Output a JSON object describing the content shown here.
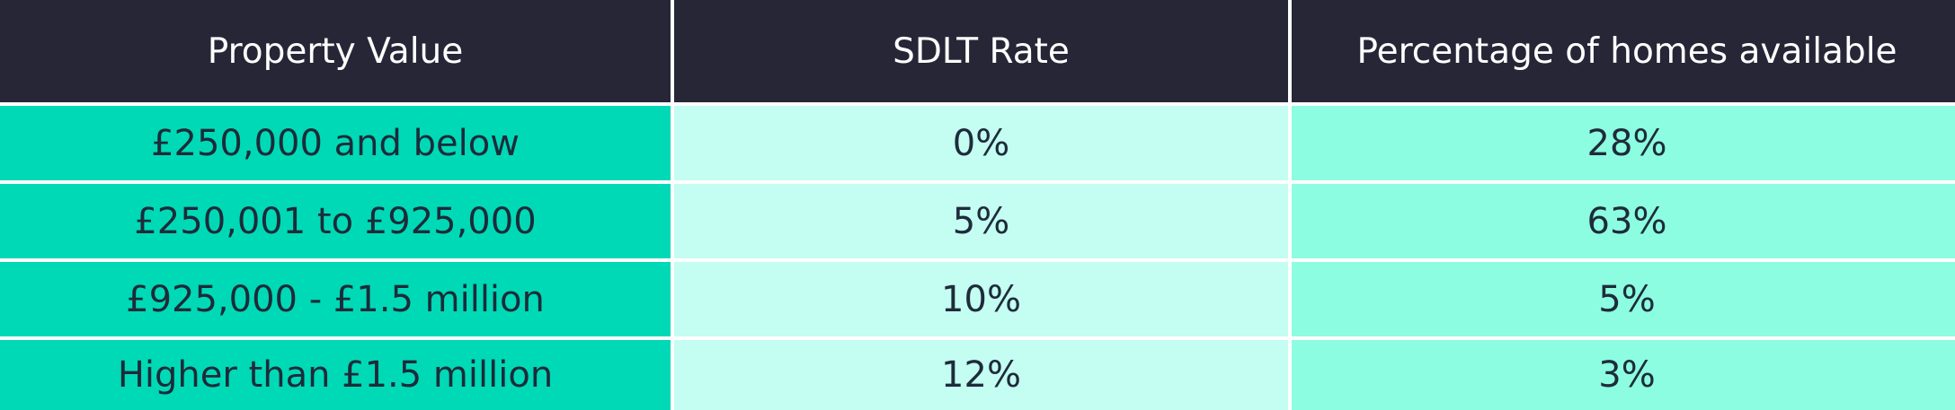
{
  "table": {
    "header": [
      "Property Value",
      "SDLT Rate",
      "Percentage of homes available"
    ],
    "rows": [
      [
        "£250,000 and below",
        "0%",
        "28%"
      ],
      [
        "£250,001 to £925,000",
        "5%",
        "63%"
      ],
      [
        "£925,000 - £1.5 million",
        "10%",
        "5%"
      ],
      [
        "Higher than £1.5 million",
        "12%",
        "3%"
      ]
    ]
  }
}
